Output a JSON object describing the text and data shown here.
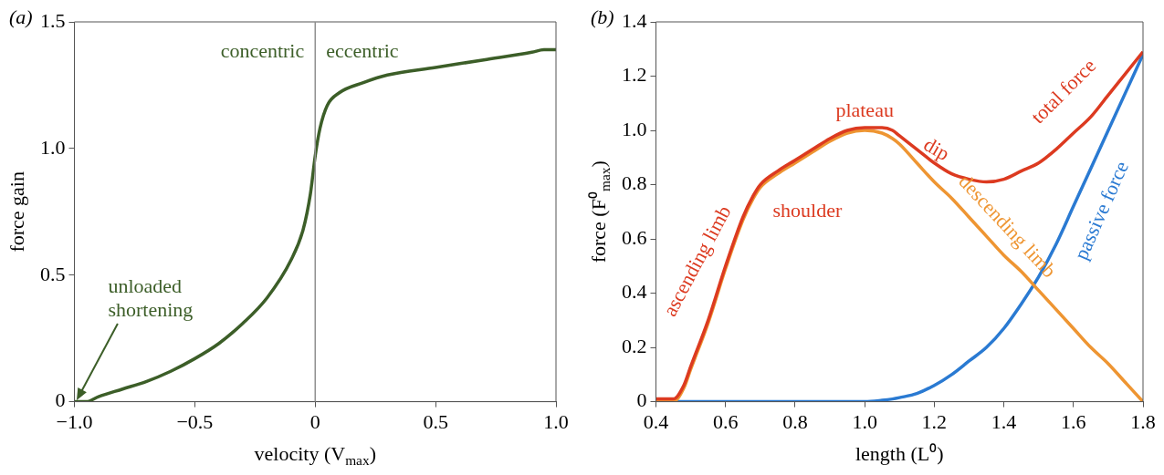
{
  "chart_data": [
    {
      "type": "line",
      "title": "(a)",
      "xlabel": "velocity (V$_{max}$)",
      "ylabel": "force gain",
      "x": [
        -1,
        -0.95,
        -0.9,
        -0.8,
        -0.7,
        -0.6,
        -0.5,
        -0.4,
        -0.3,
        -0.2,
        -0.1,
        -0.05,
        -0.02,
        0,
        0.02,
        0.05,
        0.1,
        0.2,
        0.3,
        0.5,
        0.7,
        0.9,
        0.95,
        1
      ],
      "series": [
        {
          "color": "#3c5e28",
          "values": [
            0,
            0,
            0.02,
            0.05,
            0.08,
            0.12,
            0.17,
            0.23,
            0.31,
            0.41,
            0.56,
            0.68,
            0.82,
            0.97,
            1.08,
            1.17,
            1.22,
            1.26,
            1.29,
            1.32,
            1.35,
            1.38,
            1.39,
            1.39
          ]
        }
      ],
      "xlim": [
        -1,
        1
      ],
      "xticks": [
        {
          "value": -1,
          "label": "−1.0"
        },
        {
          "value": -0.5,
          "label": "−0.5"
        },
        0,
        0.5,
        {
          "value": 1,
          "label": "1.0"
        }
      ],
      "ylim": [
        0,
        1.5
      ],
      "yticks": [
        0,
        0.5,
        {
          "value": 1,
          "label": "1.0"
        },
        1.5
      ],
      "ref_lines": [
        {
          "axis": "x",
          "value": 0,
          "color": "#909090"
        }
      ],
      "annotations": [
        "concentric",
        "eccentric",
        {
          "text": "unloaded shortening",
          "x": -1,
          "y": 0
        }
      ]
    },
    {
      "type": "line",
      "title": "(b)",
      "xlabel": "length (L⁰)",
      "ylabel": "force (F⁰$_{max}$)",
      "x": [
        0.4,
        0.45,
        0.48,
        0.5,
        0.55,
        0.6,
        0.65,
        0.68,
        0.7,
        0.75,
        0.8,
        0.85,
        0.9,
        0.95,
        1.0,
        1.05,
        1.08,
        1.1,
        1.15,
        1.2,
        1.25,
        1.3,
        1.35,
        1.4,
        1.45,
        1.5,
        1.55,
        1.6,
        1.65,
        1.7,
        1.75,
        1.8
      ],
      "series": [
        {
          "name": "total force",
          "color": "#dc3a20",
          "values": [
            0.01,
            0.01,
            0.06,
            0.13,
            0.3,
            0.5,
            0.68,
            0.76,
            0.8,
            0.85,
            0.89,
            0.93,
            0.97,
            1.0,
            1.01,
            1.01,
            1.0,
            0.98,
            0.93,
            0.88,
            0.84,
            0.82,
            0.81,
            0.82,
            0.85,
            0.88,
            0.93,
            0.99,
            1.05,
            1.13,
            1.21,
            1.29
          ]
        },
        {
          "name": "descending limb",
          "color": "#ee9532",
          "values": [
            0,
            0,
            0.05,
            0.12,
            0.29,
            0.49,
            0.67,
            0.75,
            0.79,
            0.84,
            0.88,
            0.92,
            0.96,
            0.99,
            1.0,
            0.99,
            0.97,
            0.95,
            0.88,
            0.81,
            0.75,
            0.68,
            0.61,
            0.54,
            0.48,
            0.41,
            0.34,
            0.27,
            0.2,
            0.14,
            0.07,
            0
          ]
        },
        {
          "name": "passive force",
          "color": "#2a7ad2",
          "values": [
            0,
            0,
            0,
            0,
            0,
            0,
            0,
            0,
            0,
            0,
            0,
            0,
            0,
            0,
            0,
            0.005,
            0.01,
            0.015,
            0.03,
            0.06,
            0.1,
            0.15,
            0.2,
            0.27,
            0.36,
            0.46,
            0.58,
            0.72,
            0.86,
            1.0,
            1.14,
            1.28
          ]
        }
      ],
      "xlim": [
        0.4,
        1.8
      ],
      "xticks": [
        0.4,
        0.6,
        0.8,
        {
          "value": 1,
          "label": "1.0"
        },
        1.2,
        1.4,
        1.6,
        1.8
      ],
      "ylim": [
        0,
        1.4
      ],
      "yticks": [
        0,
        0.2,
        0.4,
        0.6,
        0.8,
        {
          "value": 1,
          "label": "1.0"
        },
        1.2,
        1.4
      ],
      "annotations": [
        {
          "text": "ascending limb",
          "x": 0.6,
          "y": 0.5
        },
        "shoulder",
        {
          "text": "plateau",
          "x": 1.0,
          "y": 1.01
        },
        {
          "text": "dip",
          "x": 1.2,
          "y": 0.88
        }
      ]
    }
  ]
}
